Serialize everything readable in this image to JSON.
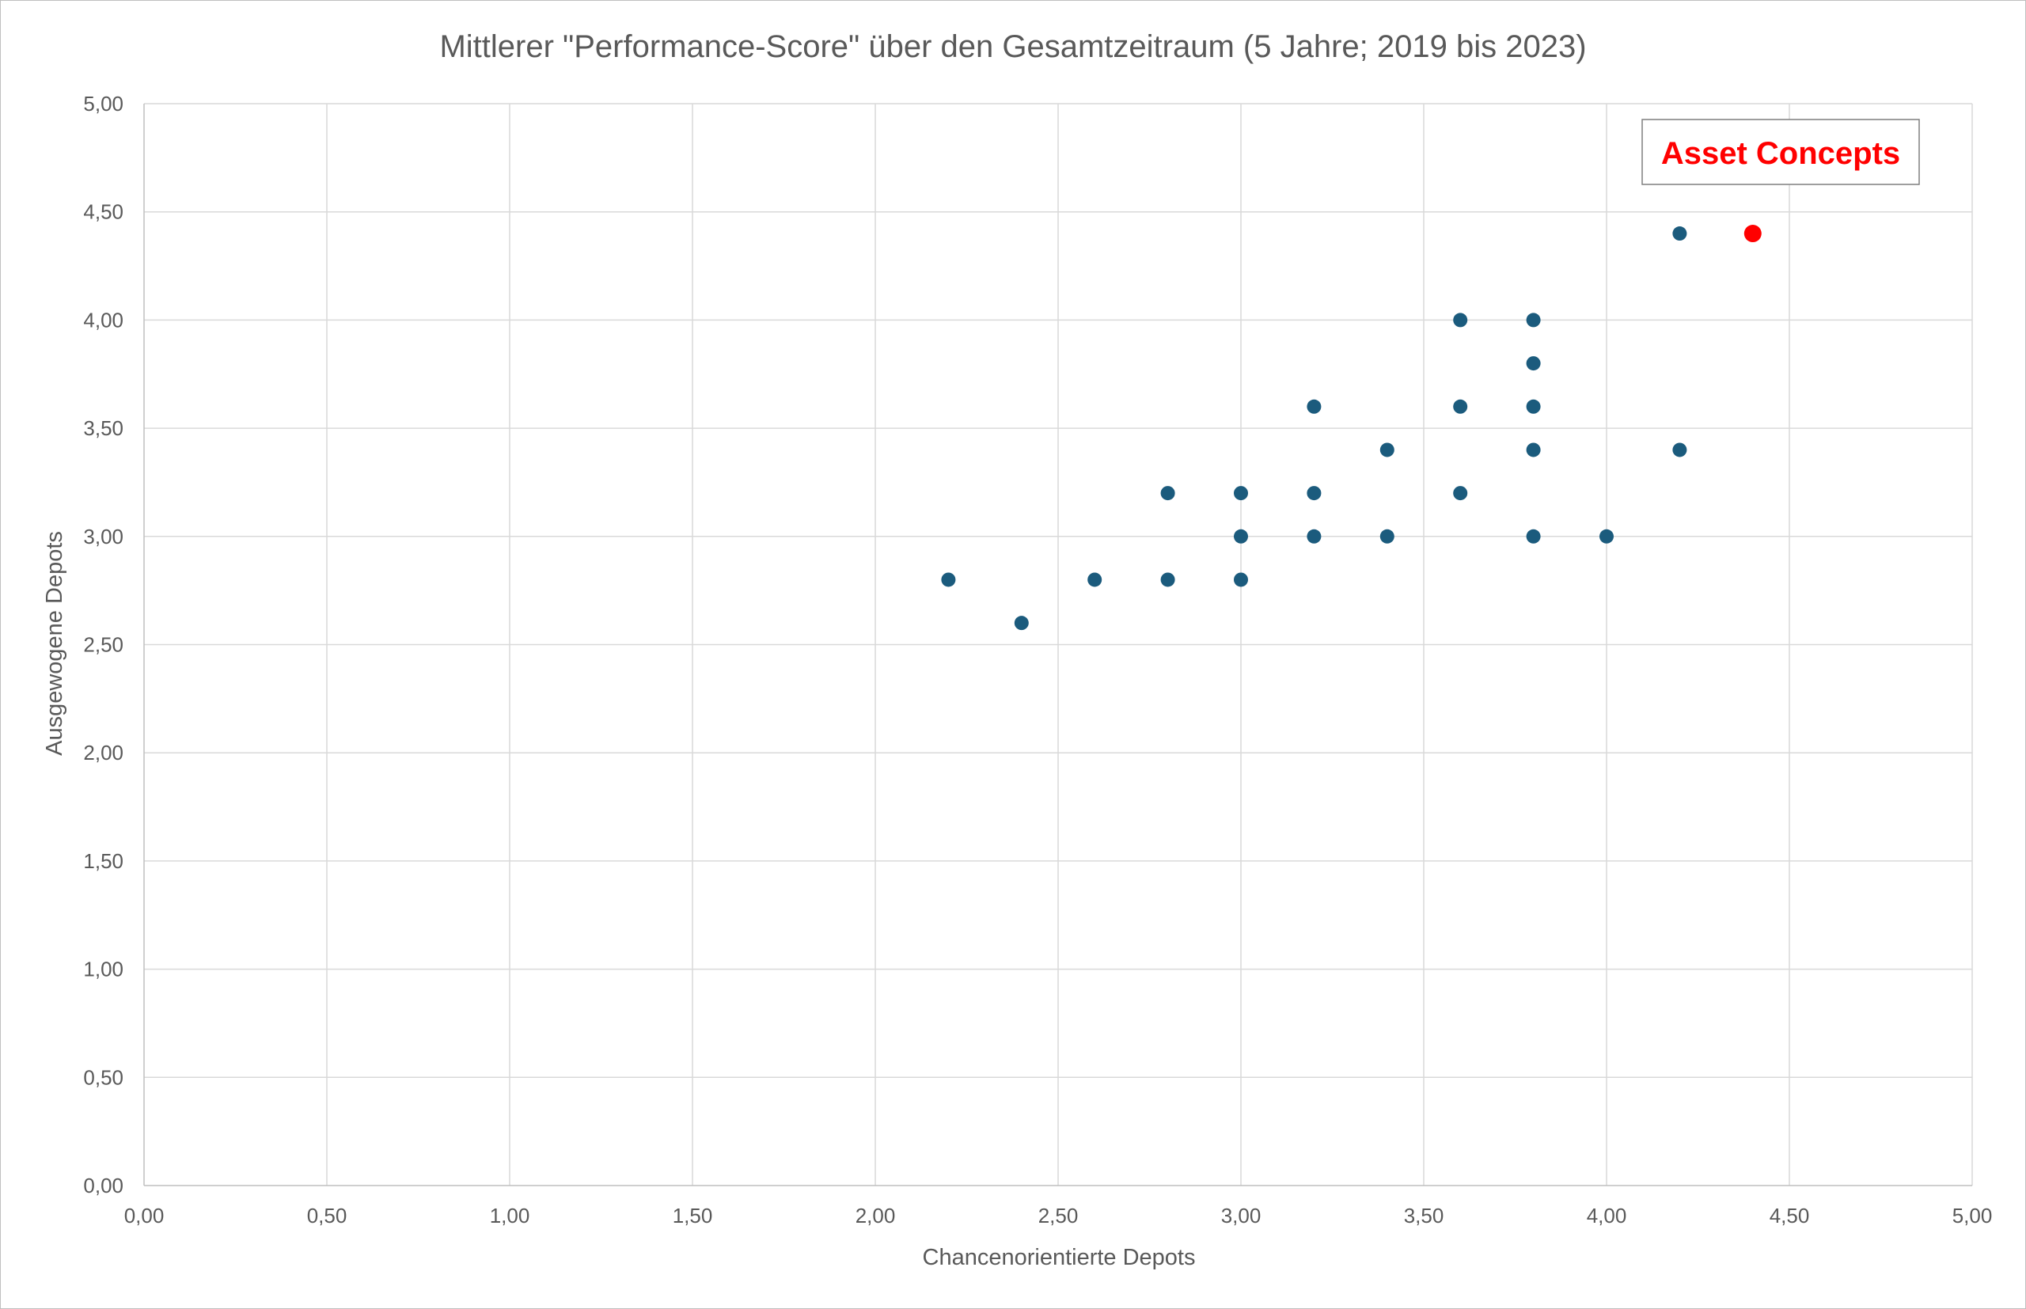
{
  "chart_data": {
    "type": "scatter",
    "title": "Mittlerer \"Performance-Score\" über den Gesamtzeitraum (5 Jahre; 2019 bis 2023)",
    "xlabel": "Chancenorientierte Depots",
    "ylabel": "Ausgewogene Depots",
    "xlim": [
      0,
      5
    ],
    "ylim": [
      0,
      5
    ],
    "x_ticks": [
      "0,00",
      "0,50",
      "1,00",
      "1,50",
      "2,00",
      "2,50",
      "3,00",
      "3,50",
      "4,00",
      "4,50",
      "5,00"
    ],
    "y_ticks": [
      "0,00",
      "0,50",
      "1,00",
      "1,50",
      "2,00",
      "2,50",
      "3,00",
      "3,50",
      "4,00",
      "4,50",
      "5,00"
    ],
    "grid": true,
    "series": [
      {
        "color": "#1b5b7d",
        "points": [
          {
            "x": 2.2,
            "y": 2.8
          },
          {
            "x": 2.4,
            "y": 2.6
          },
          {
            "x": 2.6,
            "y": 2.8
          },
          {
            "x": 2.8,
            "y": 2.8
          },
          {
            "x": 2.8,
            "y": 3.2
          },
          {
            "x": 3.0,
            "y": 2.8
          },
          {
            "x": 3.0,
            "y": 3.0
          },
          {
            "x": 3.0,
            "y": 3.2
          },
          {
            "x": 3.2,
            "y": 3.0
          },
          {
            "x": 3.2,
            "y": 3.2
          },
          {
            "x": 3.2,
            "y": 3.6
          },
          {
            "x": 3.4,
            "y": 3.0
          },
          {
            "x": 3.4,
            "y": 3.4
          },
          {
            "x": 3.6,
            "y": 3.2
          },
          {
            "x": 3.6,
            "y": 3.6
          },
          {
            "x": 3.6,
            "y": 4.0
          },
          {
            "x": 3.8,
            "y": 3.0
          },
          {
            "x": 3.8,
            "y": 3.4
          },
          {
            "x": 3.8,
            "y": 3.6
          },
          {
            "x": 3.8,
            "y": 3.8
          },
          {
            "x": 3.8,
            "y": 4.0
          },
          {
            "x": 4.0,
            "y": 3.0
          },
          {
            "x": 4.2,
            "y": 3.4
          },
          {
            "x": 4.2,
            "y": 4.4
          }
        ]
      },
      {
        "name": "Asset Concepts",
        "color": "#ff0000",
        "points": [
          {
            "x": 4.4,
            "y": 4.4
          }
        ]
      }
    ],
    "annotations": [
      {
        "text": "Asset Concepts",
        "color": "#ff0000"
      }
    ]
  }
}
